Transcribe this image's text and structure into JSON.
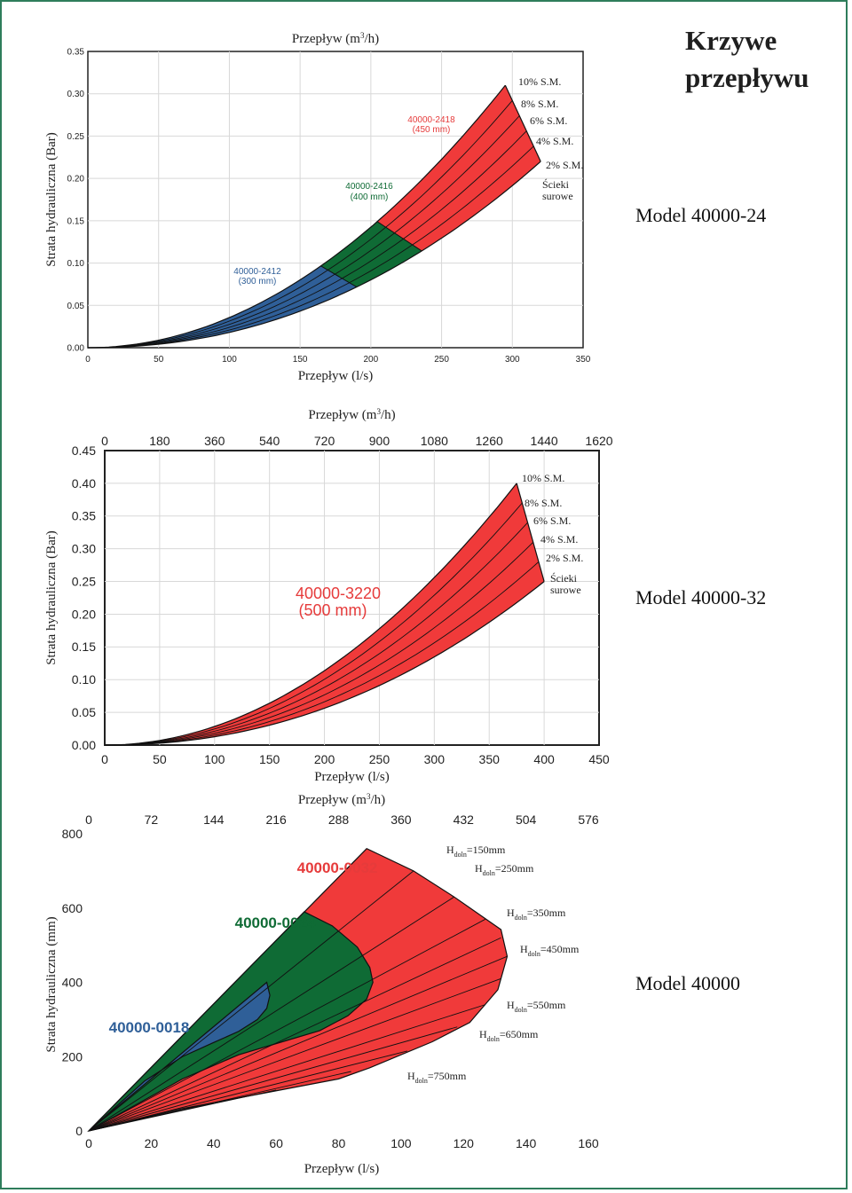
{
  "page": {
    "title_line1": "Krzywe",
    "title_line2": "przepływu"
  },
  "colors": {
    "frame": "#2e7d5b",
    "blue": "#2f5f98",
    "green": "#0f6b35",
    "red": "#f03a3a",
    "grid": "#d8d8d8",
    "redtext": "#e63b3b",
    "bluetext": "#2f5f98",
    "greentext": "#0f6b35"
  },
  "chart_data": [
    {
      "type": "area",
      "model_label": "Model 40000-24",
      "xlabel": "Przepływ (l/s)",
      "x2label": "Przepływ (m³/h)",
      "ylabel": "Strata hydrauliczna (Bar)",
      "xlim": [
        0,
        350
      ],
      "ylim": [
        0,
        0.35
      ],
      "xticks": [
        "0",
        "50",
        "100",
        "150",
        "200",
        "250",
        "300",
        "350"
      ],
      "yticks": [
        "0.00",
        "0.05",
        "0.10",
        "0.15",
        "0.20",
        "0.25",
        "0.30",
        "0.35"
      ],
      "curves": [
        "Ścieki surowe",
        "2% S.M.",
        "4% S.M.",
        "6% S.M.",
        "8% S.M.",
        "10% S.M."
      ],
      "curve_points": {
        "lower": [
          [
            0,
            0
          ],
          [
            100,
            0.018
          ],
          [
            200,
            0.078
          ],
          [
            320,
            0.22
          ]
        ],
        "upper": [
          [
            0,
            0
          ],
          [
            100,
            0.028
          ],
          [
            200,
            0.125
          ],
          [
            295,
            0.31
          ]
        ]
      },
      "regions": [
        {
          "name": "40000-2412",
          "size": "(300 mm)",
          "x_from": 0,
          "x_to": 200,
          "color": "blue"
        },
        {
          "name": "40000-2416",
          "size": "(400 mm)",
          "x_from": 190,
          "x_to": 250,
          "color": "green"
        },
        {
          "name": "40000-2418",
          "size": "(450 mm)",
          "x_from": 236,
          "x_to": 330,
          "color": "red"
        }
      ]
    },
    {
      "type": "area",
      "model_label": "Model 40000-32",
      "xlabel": "Przepływ (l/s)",
      "x2label": "Przepływ (m³/h)",
      "ylabel": "Strata hydrauliczna (Bar)",
      "xlim": [
        0,
        450
      ],
      "ylim": [
        0,
        0.45
      ],
      "xticks": [
        "0",
        "50",
        "100",
        "150",
        "200",
        "250",
        "300",
        "350",
        "400",
        "450"
      ],
      "x2ticks": [
        "0",
        "180",
        "360",
        "540",
        "720",
        "900",
        "1080",
        "1260",
        "1440",
        "1620"
      ],
      "yticks": [
        "0.00",
        "0.05",
        "0.10",
        "0.15",
        "0.20",
        "0.25",
        "0.30",
        "0.35",
        "0.40",
        "0.45"
      ],
      "curves": [
        "Ścieki surowe",
        "2% S.M.",
        "4% S.M.",
        "6% S.M.",
        "8% S.M.",
        "10% S.M."
      ],
      "curve_points": {
        "lower": [
          [
            0,
            0
          ],
          [
            200,
            0.05
          ],
          [
            400,
            0.25
          ]
        ],
        "upper": [
          [
            0,
            0
          ],
          [
            200,
            0.09
          ],
          [
            375,
            0.4
          ]
        ]
      },
      "regions": [
        {
          "name": "40000-3220",
          "size": "(500 mm)",
          "x_from": 0,
          "x_to": 400,
          "color": "red"
        }
      ]
    },
    {
      "type": "area",
      "model_label": "Model 40000",
      "xlabel": "Przepływ (l/s)",
      "x2label": "Przepływ (m³/h)",
      "ylabel": "Strata hydrauliczna (mm)",
      "xlim": [
        0,
        160
      ],
      "ylim": [
        0,
        800
      ],
      "xticks": [
        "0",
        "20",
        "40",
        "60",
        "80",
        "100",
        "120",
        "140",
        "160"
      ],
      "x2ticks": [
        "0",
        "72",
        "144",
        "216",
        "288",
        "360",
        "432",
        "504",
        "576"
      ],
      "yticks": [
        "0",
        "200",
        "400",
        "600",
        "800"
      ],
      "curves": [
        "Hdoln=150mm",
        "Hdoln=250mm",
        "Hdoln=350mm",
        "Hdoln=450mm",
        "Hdoln=550mm",
        "Hdoln=650mm",
        "Hdoln=750mm"
      ],
      "hdoln_labels": [
        {
          "main": "H",
          "sub": "doln",
          "rest": "=150mm"
        },
        {
          "main": "H",
          "sub": "doln",
          "rest": "=250mm"
        },
        {
          "main": "H",
          "sub": "doln",
          "rest": "=350mm"
        },
        {
          "main": "H",
          "sub": "doln",
          "rest": "=450mm"
        },
        {
          "main": "H",
          "sub": "doln",
          "rest": "=550mm"
        },
        {
          "main": "H",
          "sub": "doln",
          "rest": "=650mm"
        },
        {
          "main": "H",
          "sub": "doln",
          "rest": "=750mm"
        }
      ],
      "regions": [
        {
          "name": "40000-0018",
          "x_to": 58,
          "color": "blue"
        },
        {
          "name": "40000-0024",
          "x_to": 92,
          "color": "green"
        },
        {
          "name": "40000-0032",
          "x_to": 136,
          "color": "red"
        }
      ]
    }
  ]
}
